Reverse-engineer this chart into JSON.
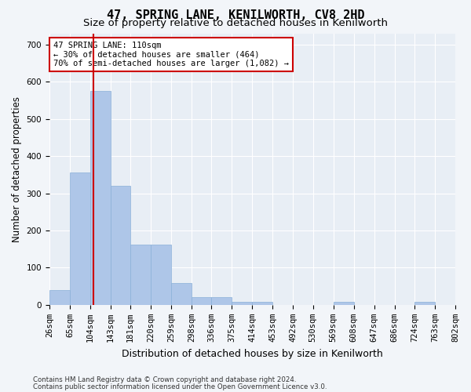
{
  "title": "47, SPRING LANE, KENILWORTH, CV8 2HD",
  "subtitle": "Size of property relative to detached houses in Kenilworth",
  "xlabel": "Distribution of detached houses by size in Kenilworth",
  "ylabel": "Number of detached properties",
  "footnote1": "Contains HM Land Registry data © Crown copyright and database right 2024.",
  "footnote2": "Contains public sector information licensed under the Open Government Licence v3.0.",
  "annotation_line1": "47 SPRING LANE: 110sqm",
  "annotation_line2": "← 30% of detached houses are smaller (464)",
  "annotation_line3": "70% of semi-detached houses are larger (1,082) →",
  "property_size": 110,
  "bar_edges": [
    26,
    65,
    104,
    143,
    181,
    220,
    259,
    298,
    336,
    375,
    414,
    453,
    492,
    530,
    569,
    608,
    647,
    686,
    724,
    763,
    802
  ],
  "bar_heights": [
    40,
    355,
    575,
    320,
    163,
    163,
    58,
    20,
    20,
    9,
    9,
    0,
    0,
    0,
    9,
    0,
    0,
    0,
    9,
    0
  ],
  "bar_color": "#aec6e8",
  "bar_edgecolor": "#8ab0d8",
  "redline_x": 110,
  "redline_color": "#cc0000",
  "annotation_box_color": "#cc0000",
  "ylim": [
    0,
    730
  ],
  "yticks": [
    0,
    100,
    200,
    300,
    400,
    500,
    600,
    700
  ],
  "plot_bg": "#e8eef5",
  "fig_bg": "#f2f5f9",
  "grid_color": "#ffffff",
  "title_fontsize": 11,
  "subtitle_fontsize": 9.5,
  "xlabel_fontsize": 9,
  "ylabel_fontsize": 8.5,
  "tick_fontsize": 7.5,
  "annotation_fontsize": 7.5
}
